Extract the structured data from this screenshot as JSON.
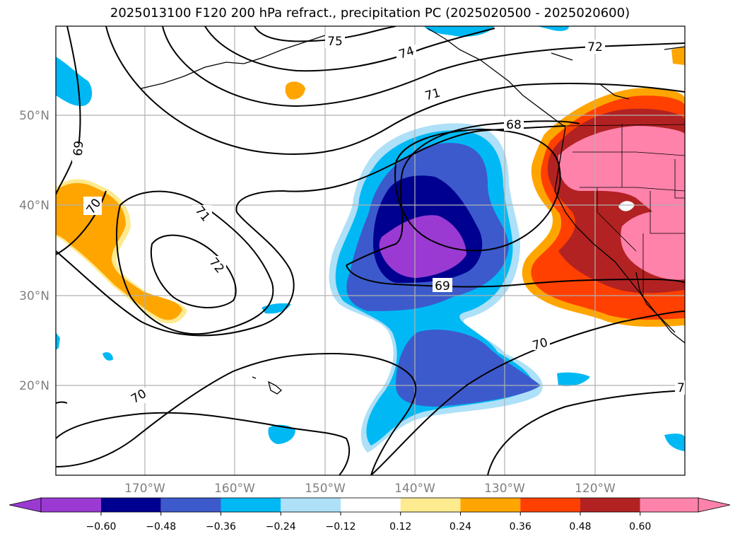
{
  "title": "2025013100 F120 200 hPa refract., precipitation PC (2025020500 - 2025020600)",
  "lat_labels": [
    "20°N",
    "30°N",
    "40°N",
    "50°N"
  ],
  "lon_labels": [
    "170°W",
    "160°W",
    "150°W",
    "140°W",
    "130°W",
    "120°W"
  ],
  "contour_labels": [
    "75",
    "74",
    "72",
    "71",
    "68",
    "69",
    "70",
    "71",
    "72",
    "69",
    "70",
    "70",
    "7"
  ],
  "colorbar": {
    "ticks": [
      "−0.60",
      "−0.48",
      "−0.36",
      "−0.24",
      "−0.12",
      "0.12",
      "0.24",
      "0.36",
      "0.48",
      "0.60"
    ],
    "colors": [
      "#9a3ad2",
      "#000090",
      "#3c5acc",
      "#00b9f4",
      "#aee0f8",
      "#ffffff",
      "#feea8f",
      "#ffa500",
      "#ff4000",
      "#b22222",
      "#ff82ab"
    ]
  }
}
